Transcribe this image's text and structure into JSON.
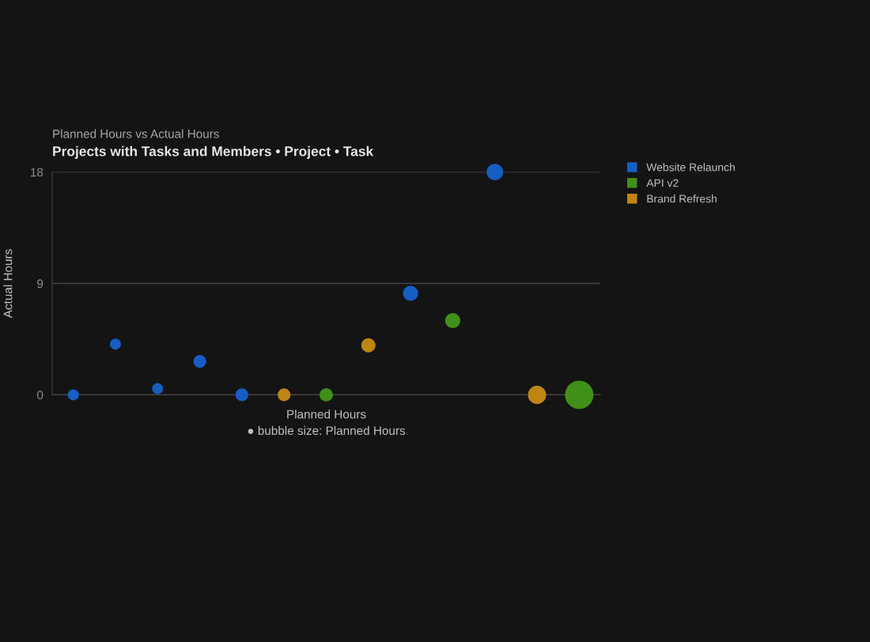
{
  "chart_data": {
    "type": "bubble",
    "title": "Projects with Tasks and Members • Project • Task",
    "subtitle": "Planned Hours vs Actual Hours",
    "xlabel": "Planned Hours",
    "ylabel": "Actual Hours",
    "annotations": [
      "● bubble size: Planned Hours"
    ],
    "categories": [
      null,
      null,
      null,
      null,
      null,
      null,
      null,
      null,
      null,
      null,
      null,
      null,
      null
    ],
    "ylim": [
      0,
      18
    ],
    "yticks": [
      0,
      9,
      18
    ],
    "grid": "y",
    "legend": "top right",
    "series": [
      {
        "name": "Website Relaunch",
        "color": "#165ec4",
        "values": [
          0,
          4.1,
          0.5,
          2.7,
          0,
          null,
          null,
          null,
          8.2,
          null,
          18,
          null,
          null
        ],
        "sizes": [
          0.15,
          0.15,
          0.15,
          0.2,
          0.2,
          null,
          null,
          null,
          0.28,
          null,
          0.34,
          null,
          null
        ]
      },
      {
        "name": "API v2",
        "color": "#3f8f19",
        "values": [
          null,
          null,
          null,
          null,
          null,
          null,
          0,
          null,
          null,
          6,
          null,
          null,
          0
        ],
        "sizes": [
          null,
          null,
          null,
          null,
          null,
          null,
          0.22,
          null,
          null,
          0.28,
          null,
          null,
          1
        ]
      },
      {
        "name": "Brand Refresh",
        "color": "#bf8513",
        "values": [
          null,
          null,
          null,
          null,
          null,
          0,
          null,
          4,
          null,
          null,
          null,
          0,
          null
        ],
        "sizes": [
          null,
          null,
          null,
          null,
          null,
          0.2,
          null,
          0.25,
          null,
          null,
          null,
          0.41,
          null
        ]
      }
    ]
  }
}
